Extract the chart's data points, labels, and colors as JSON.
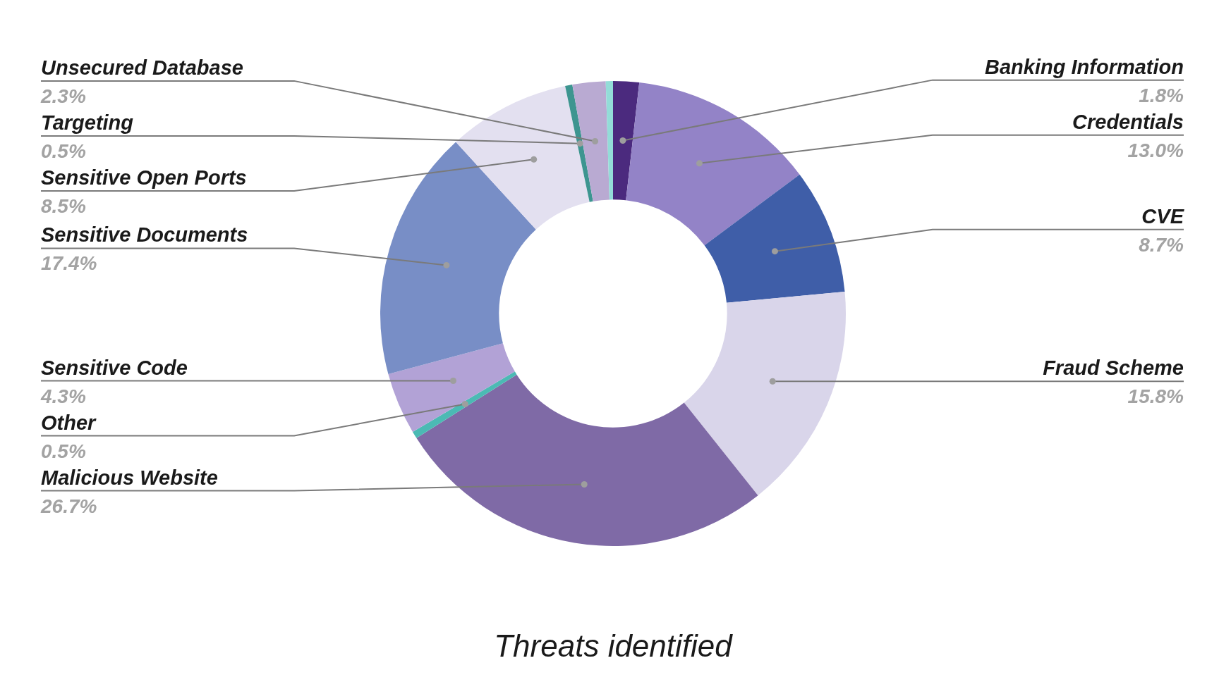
{
  "chart_data": {
    "type": "donut",
    "title": "Threats identified",
    "categories": [
      "Banking Information",
      "Credentials",
      "CVE",
      "Fraud Scheme",
      "Malicious Website",
      "Other",
      "Sensitive Code",
      "Sensitive Documents",
      "Sensitive Open Ports",
      "Targeting",
      "Unsecured Database",
      null
    ],
    "values": [
      1.8,
      13.0,
      8.7,
      15.8,
      26.7,
      0.5,
      4.3,
      17.4,
      8.5,
      0.5,
      2.3,
      0.5
    ],
    "colors": [
      "#4b2a7e",
      "#9383c7",
      "#3f5ea8",
      "#d9d5ea",
      "#7f6aa6",
      "#4bbab4",
      "#b2a2d6",
      "#788ec6",
      "#e3e0f0",
      "#3d9590",
      "#b9aad2",
      "#93dcd8"
    ],
    "value_labels": [
      "1.8%",
      "13.0%",
      "8.7%",
      "15.8%",
      "26.7%",
      "0.5%",
      "4.3%",
      "17.4%",
      "8.5%",
      "0.5%",
      "2.3%",
      null
    ]
  }
}
